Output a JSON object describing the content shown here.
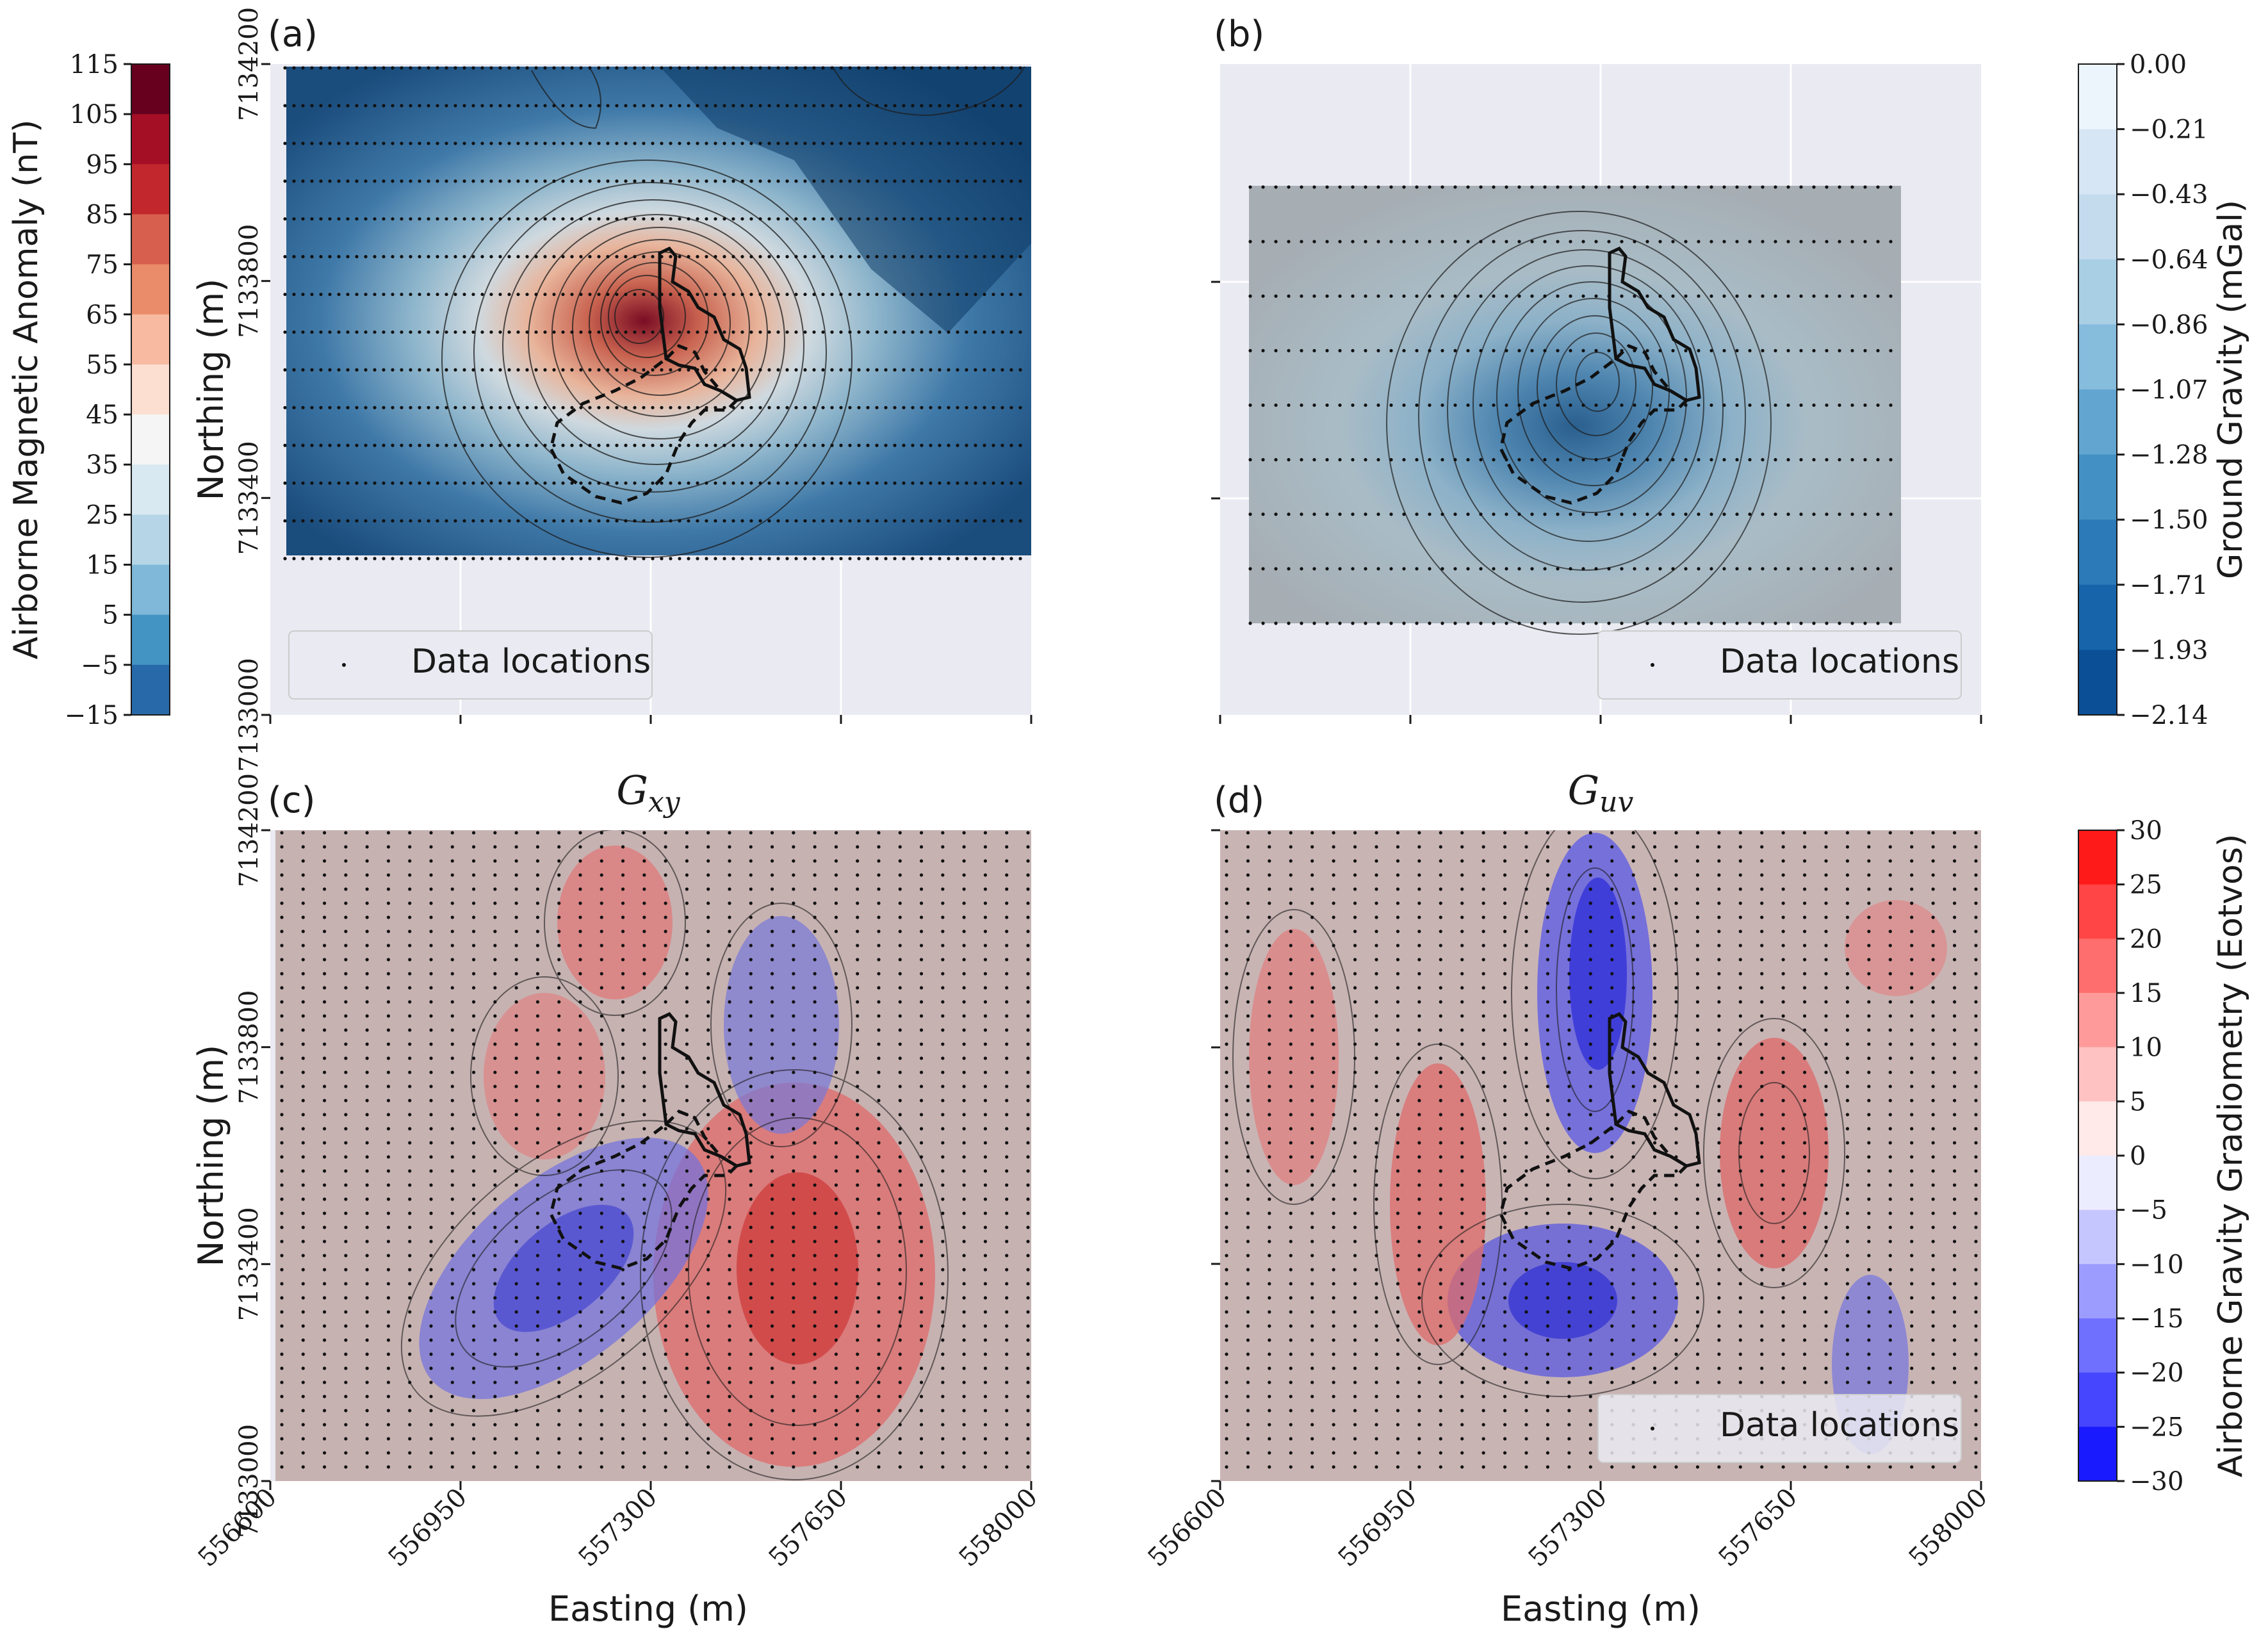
{
  "chart_data": [
    {
      "type": "heatmap",
      "panel_label": "(a)",
      "title": "",
      "xlabel": "",
      "ylabel": "Northing (m)",
      "xlim": [
        556600,
        558000
      ],
      "ylim": [
        7133000,
        7134200
      ],
      "x_ticks": [
        556600,
        556950,
        557300,
        557650,
        558000
      ],
      "y_ticks": [
        "7133000",
        "7133400",
        "7133800",
        "7134200"
      ],
      "data_extent": {
        "x": [
          556630,
          557970
        ],
        "y": [
          7133280,
          7134180
        ]
      },
      "legend": {
        "label": "Data locations",
        "placement": "lower-left"
      },
      "colorbar": {
        "label": "Airborne Magnetic Anomaly (nT)",
        "placement": "left",
        "colormap": "RdBu_r",
        "ticks": [
          "115",
          "105",
          "95",
          "85",
          "75",
          "65",
          "55",
          "45",
          "35",
          "25",
          "15",
          "5",
          "−5",
          "−15"
        ],
        "range": [
          -15,
          115
        ]
      },
      "anomaly_peak": {
        "x": 557270,
        "y": 7133680,
        "value": 115
      },
      "survey_lines": "east-west",
      "grid": true
    },
    {
      "type": "heatmap",
      "panel_label": "(b)",
      "title": "",
      "xlabel": "",
      "ylabel": "",
      "xlim": [
        556600,
        558000
      ],
      "ylim": [
        7133000,
        7134200
      ],
      "data_extent": {
        "x": [
          556650,
          557850
        ],
        "y": [
          7133150,
          7133960
        ]
      },
      "legend": {
        "label": "Data locations",
        "placement": "lower-right"
      },
      "colorbar": {
        "label": "Ground Gravity (mGal)",
        "placement": "right",
        "colormap": "Blues_r",
        "ticks": [
          "0.00",
          "−0.21",
          "−0.43",
          "−0.64",
          "−0.86",
          "−1.07",
          "−1.28",
          "−1.50",
          "−1.71",
          "−1.93",
          "−2.14"
        ],
        "range": [
          -2.14,
          0
        ]
      },
      "anomaly_min": {
        "x": 557250,
        "y": 7133520,
        "value": -2.14
      },
      "survey_lines": "east-west",
      "grid": true
    },
    {
      "type": "heatmap",
      "panel_label": "(c)",
      "title": "G_xy",
      "xlabel": "Easting (m)",
      "ylabel": "Northing (m)",
      "xlim": [
        556600,
        558000
      ],
      "ylim": [
        7133000,
        7134200
      ],
      "x_ticks": [
        "556600",
        "556950",
        "557300",
        "557650",
        "558000"
      ],
      "y_ticks": [
        "7133000",
        "7133400",
        "7133800",
        "7134200"
      ],
      "colorbar": {
        "label": "Airborne Gravity Gradiometry (Eotvos)",
        "placement": "right",
        "colormap": "bwr",
        "ticks": [
          "30",
          "25",
          "20",
          "15",
          "10",
          "5",
          "0",
          "−5",
          "−10",
          "−15",
          "−20",
          "−25",
          "−30"
        ],
        "range": [
          -30,
          30
        ]
      },
      "survey_lines": "north-south",
      "grid": true
    },
    {
      "type": "heatmap",
      "panel_label": "(d)",
      "title": "G_uv",
      "xlabel": "Easting (m)",
      "ylabel": "",
      "xlim": [
        556600,
        558000
      ],
      "ylim": [
        7133000,
        7134200
      ],
      "x_ticks": [
        "556600",
        "556950",
        "557300",
        "557650",
        "558000"
      ],
      "legend": {
        "label": "Data locations",
        "placement": "lower-right"
      },
      "survey_lines": "north-south",
      "grid": true
    }
  ],
  "colors": {
    "axes_bg": "#eaeaf2",
    "mag_palette": [
      "#67001f",
      "#b2182b",
      "#d6604d",
      "#f4a582",
      "#fddbc7",
      "#f7f7f7",
      "#d1e5f0",
      "#92c5de",
      "#4393c3",
      "#2166ac",
      "#053061"
    ],
    "grav_palette": [
      "#f7fbff",
      "#deebf7",
      "#c6dbef",
      "#9ecae1",
      "#6baed6",
      "#4292c6",
      "#2171b5",
      "#08519c",
      "#08306b"
    ],
    "agg_palette": [
      "#ff0000",
      "#ff6666",
      "#ffcccc",
      "#ffffff",
      "#ccccff",
      "#6666ff",
      "#0000ff"
    ],
    "outline": "#111111"
  }
}
